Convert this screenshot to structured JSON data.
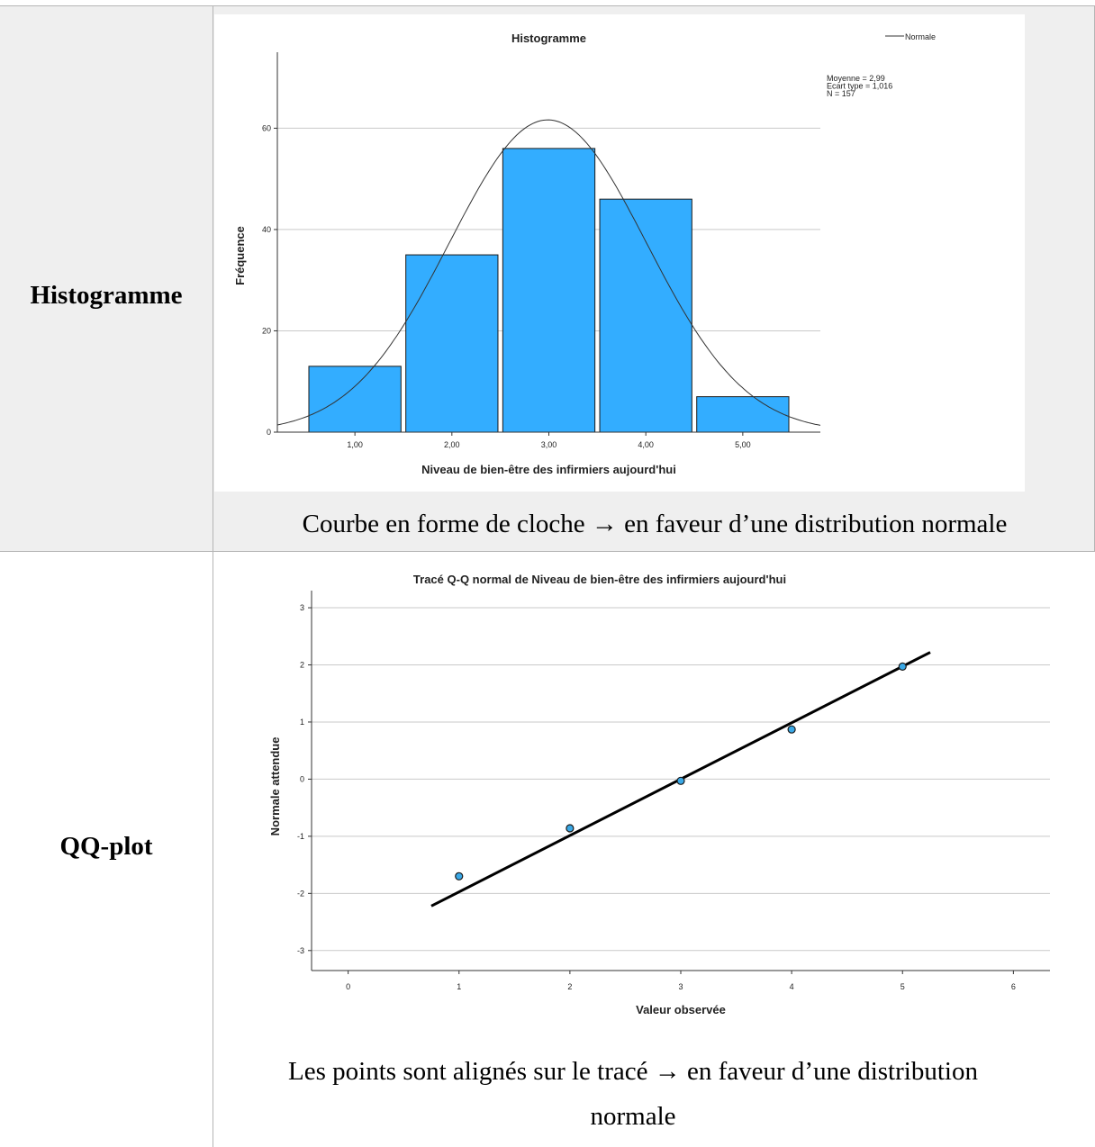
{
  "table": {
    "rows": [
      {
        "label": "Histogramme",
        "caption": "Courbe en forme de cloche → en faveur d’une distribution normale"
      },
      {
        "label": "QQ-plot",
        "caption_line1": "Les points sont alignés sur le tracé → en faveur d’une distribution",
        "caption_line2": "normale"
      }
    ]
  },
  "chart_data": [
    {
      "type": "bar",
      "title": "Histogramme",
      "xlabel": "Niveau de bien-être des infirmiers aujourd'hui",
      "ylabel": "Fréquence",
      "categories": [
        "1,00",
        "2,00",
        "3,00",
        "4,00",
        "5,00"
      ],
      "category_values": [
        1,
        2,
        3,
        4,
        5
      ],
      "values": [
        13,
        35,
        56,
        46,
        7
      ],
      "ylim": [
        0,
        75
      ],
      "yticks": [
        0,
        20,
        40,
        60
      ],
      "xlim": [
        0.2,
        5.8
      ],
      "grid": true,
      "bar_color": "#33adff",
      "legend": {
        "position": "top-right",
        "entries": [
          "Normale"
        ]
      },
      "stats": [
        "Moyenne = 2,99",
        "Ecart type = 1,016",
        "N = 157"
      ],
      "normal_curve": {
        "mean": 2.99,
        "sd": 1.016,
        "n": 157,
        "bin_width": 1
      }
    },
    {
      "type": "scatter",
      "title": "Tracé Q-Q normal de Niveau de bien-être des infirmiers aujourd'hui",
      "xlabel": "Valeur observée",
      "ylabel": "Normale attendue",
      "x": [
        1,
        2,
        3,
        4,
        5
      ],
      "y": [
        -1.7,
        -0.86,
        -0.03,
        0.87,
        1.97
      ],
      "xlim": [
        -0.33,
        6.33
      ],
      "ylim": [
        -3.35,
        3.3
      ],
      "xticks": [
        0,
        1,
        2,
        3,
        4,
        5,
        6
      ],
      "yticks": [
        -3,
        -2,
        -1,
        0,
        1,
        2,
        3
      ],
      "grid": true,
      "point_color": "#3aa8e6",
      "reference_line": {
        "x": [
          0.75,
          5.25
        ],
        "y": [
          -2.22,
          2.22
        ]
      }
    }
  ]
}
